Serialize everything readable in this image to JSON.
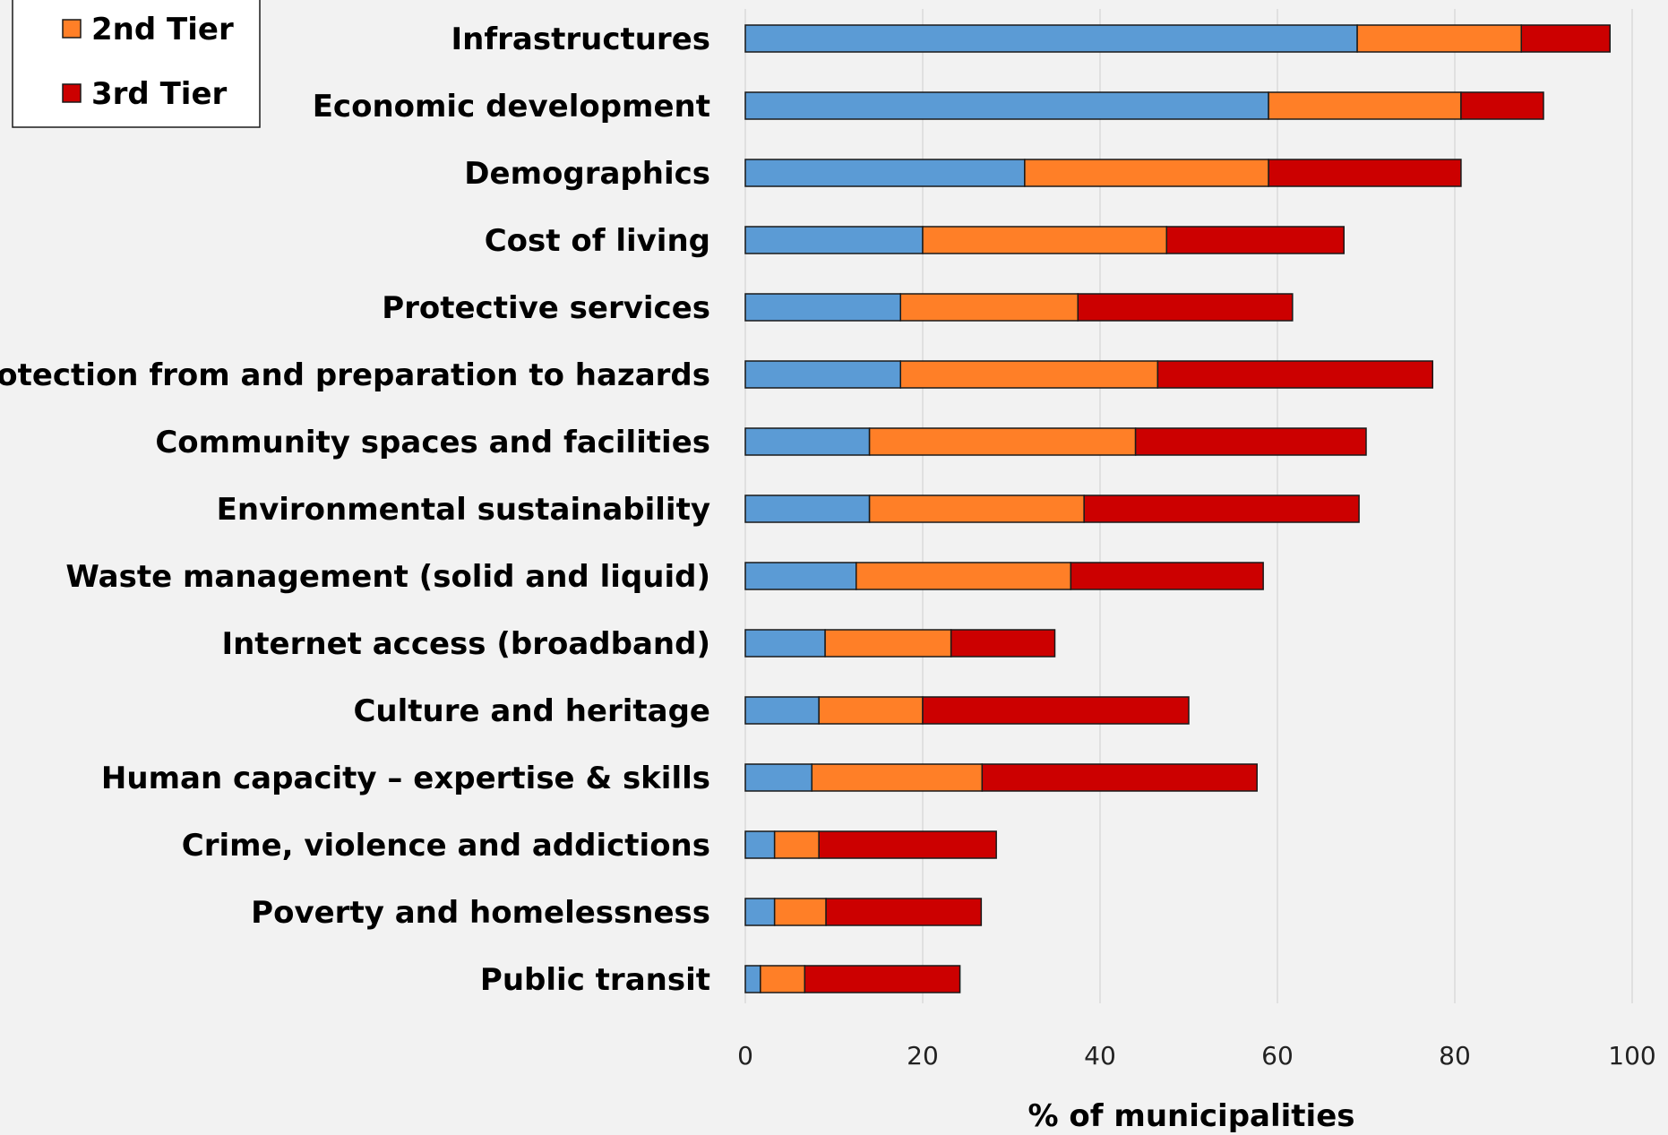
{
  "chart_data": {
    "type": "bar",
    "orientation": "horizontal",
    "stacked": true,
    "categories": [
      "Infrastructures",
      "Economic development",
      "Demographics",
      "Cost of living",
      "Protective services",
      "Protection from and preparation to hazards",
      "Community spaces and facilities",
      "Environmental sustainability",
      "Waste management (solid and liquid)",
      "Internet access (broadband)",
      "Culture and heritage",
      "Human capacity – expertise & skills",
      "Crime, violence and addictions",
      "Poverty and homelessness",
      "Public transit"
    ],
    "series": [
      {
        "color": "#5b9bd5",
        "values": [
          69,
          59,
          31.5,
          20,
          17.5,
          17.5,
          14,
          14,
          12.5,
          9,
          8.3,
          7.5,
          3.3,
          3.3,
          1.7
        ]
      },
      {
        "name": "2nd Tier",
        "color": "#ff7f27",
        "values": [
          18.5,
          21.7,
          27.5,
          27.5,
          20,
          29,
          30,
          24.2,
          24.2,
          14.2,
          11.7,
          19.2,
          5,
          5.8,
          5
        ]
      },
      {
        "name": "3rd Tier",
        "color": "#cc0000",
        "values": [
          10,
          9.3,
          21.7,
          20,
          24.2,
          31,
          26,
          31,
          21.7,
          11.7,
          30,
          31,
          20,
          17.5,
          17.5
        ]
      }
    ],
    "xlabel": "% of municipalities",
    "xlim": [
      0,
      100
    ],
    "xticks": [
      "0",
      "20",
      "40",
      "60",
      "80",
      "100"
    ],
    "grid": true,
    "legend_position": "top-left"
  }
}
